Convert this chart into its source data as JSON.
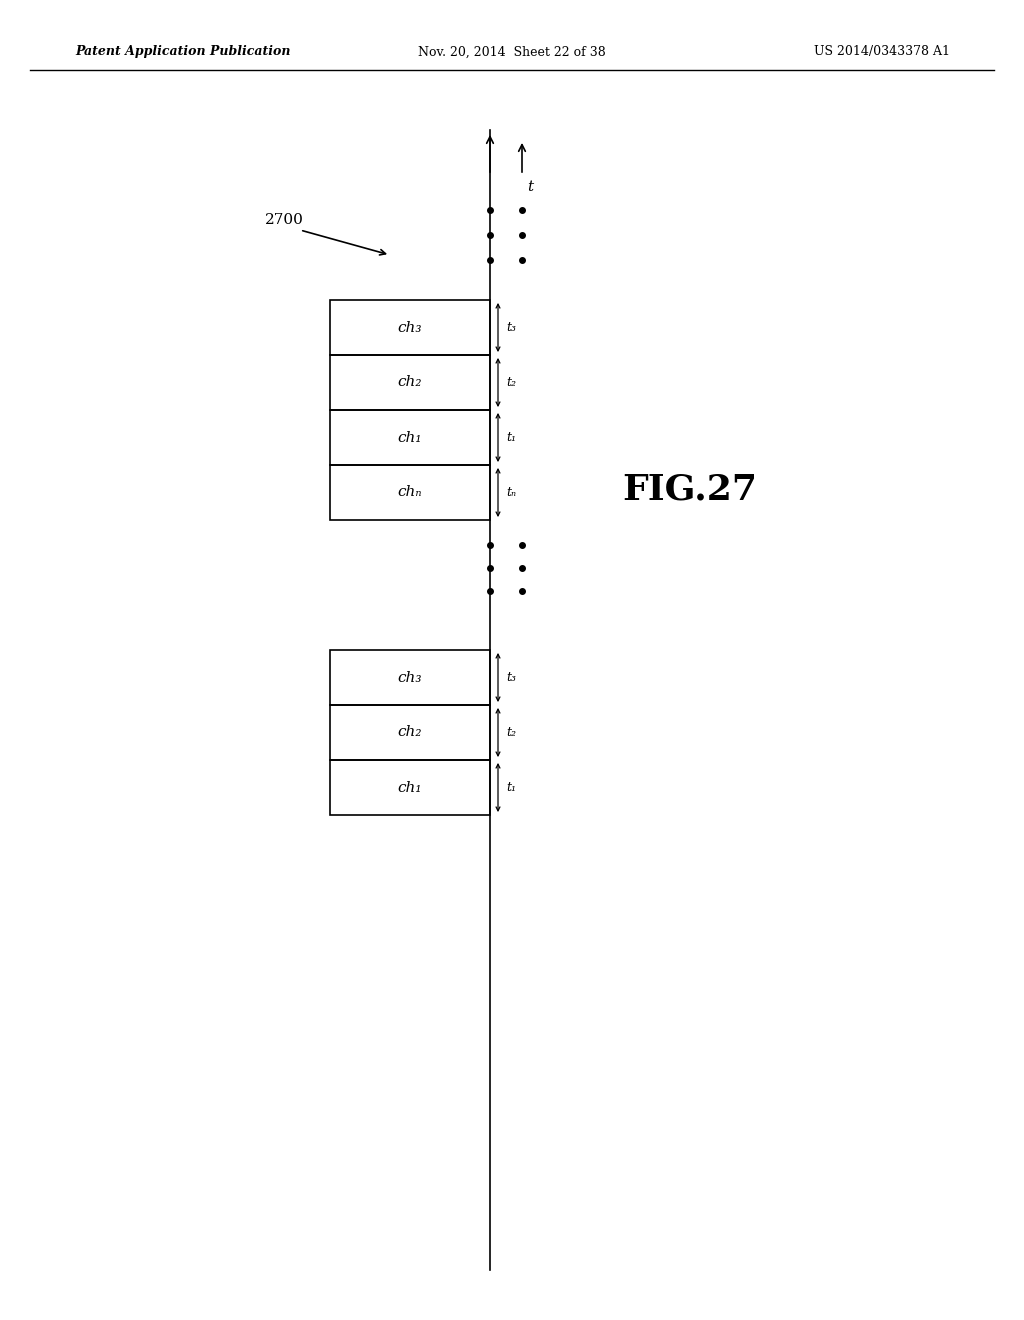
{
  "bg_color": "#ffffff",
  "header_left": "Patent Application Publication",
  "header_mid": "Nov. 20, 2014  Sheet 22 of 38",
  "header_right": "US 2014/0343378 A1",
  "fig_label": "FIG.27",
  "diagram_label": "2700",
  "top_group": {
    "boxes": [
      {
        "label": "ch₃",
        "t_label": "t₃"
      },
      {
        "label": "ch₂",
        "t_label": "t₂"
      },
      {
        "label": "ch₁",
        "t_label": "t₁"
      },
      {
        "label": "chₙ",
        "t_label": "tₙ"
      }
    ]
  },
  "bottom_group": {
    "boxes": [
      {
        "label": "ch₃",
        "t_label": "t₃"
      },
      {
        "label": "ch₂",
        "t_label": "t₂"
      },
      {
        "label": "ch₁",
        "t_label": "t₁"
      }
    ]
  }
}
